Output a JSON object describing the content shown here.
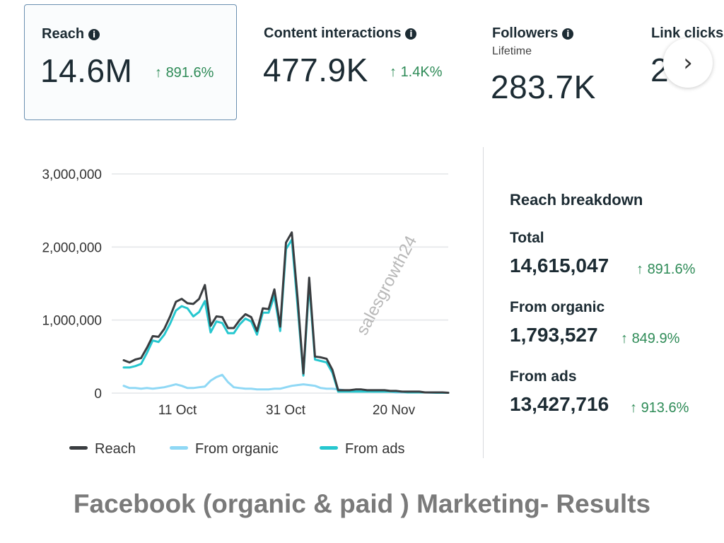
{
  "metrics": [
    {
      "title": "Reach",
      "value": "14.6M",
      "delta": "891.6%"
    },
    {
      "title": "Content interactions",
      "value": "477.9K",
      "delta": "1.4K%"
    },
    {
      "title": "Followers",
      "subtitle": "Lifetime",
      "value": "283.7K"
    },
    {
      "title": "Link clicks",
      "value": "2"
    }
  ],
  "info_icon": "info-icon",
  "next_icon": "chevron-right-icon",
  "breakdown": {
    "title": "Reach breakdown",
    "items": [
      {
        "label": "Total",
        "value": "14,615,047",
        "delta": "891.6%"
      },
      {
        "label": "From organic",
        "value": "1,793,527",
        "delta": "849.9%"
      },
      {
        "label": "From ads",
        "value": "13,427,716",
        "delta": "913.6%"
      }
    ]
  },
  "watermark": "salesgrowth24",
  "caption": "Facebook (organic & paid ) Marketing- Results",
  "colors": {
    "reach": "#3a3d40",
    "organic": "#8fd8f5",
    "ads": "#26c7cf",
    "positive": "#2e8b57"
  },
  "chart_data": {
    "type": "line",
    "x_ticks": [
      "11 Oct",
      "31 Oct",
      "20 Nov"
    ],
    "y_ticks": [
      "3,000,000",
      "2,000,000",
      "1,000,000",
      "0"
    ],
    "ylim": [
      0,
      3000000
    ],
    "grid": true,
    "legend_position": "bottom",
    "series": [
      {
        "name": "Reach",
        "color": "#3a3d40",
        "values": [
          450000,
          420000,
          460000,
          480000,
          620000,
          780000,
          770000,
          880000,
          1050000,
          1250000,
          1290000,
          1230000,
          1220000,
          1290000,
          1480000,
          920000,
          1050000,
          1040000,
          890000,
          890000,
          1000000,
          1080000,
          1040000,
          850000,
          1160000,
          1150000,
          1420000,
          910000,
          2060000,
          2200000,
          1300000,
          270000,
          1580000,
          500000,
          490000,
          470000,
          320000,
          40000,
          40000,
          40000,
          50000,
          50000,
          40000,
          40000,
          40000,
          40000,
          30000,
          30000,
          20000,
          20000,
          20000,
          20000,
          10000,
          10000,
          10000,
          10000,
          5000
        ]
      },
      {
        "name": "From organic",
        "color": "#8fd8f5",
        "values": [
          100000,
          70000,
          70000,
          60000,
          70000,
          60000,
          70000,
          80000,
          100000,
          120000,
          100000,
          70000,
          70000,
          80000,
          90000,
          170000,
          220000,
          250000,
          150000,
          80000,
          70000,
          60000,
          60000,
          50000,
          50000,
          50000,
          60000,
          60000,
          80000,
          100000,
          110000,
          120000,
          110000,
          100000,
          70000,
          60000,
          60000,
          50000,
          40000,
          30000,
          30000,
          30000,
          30000,
          20000,
          20000,
          20000,
          20000,
          10000,
          10000,
          10000,
          10000,
          10000,
          10000,
          5000,
          5000,
          5000,
          5000
        ]
      },
      {
        "name": "From ads",
        "color": "#26c7cf",
        "values": [
          350000,
          350000,
          370000,
          400000,
          550000,
          720000,
          700000,
          800000,
          950000,
          1130000,
          1190000,
          1160000,
          1050000,
          1110000,
          1260000,
          830000,
          980000,
          960000,
          820000,
          820000,
          940000,
          1020000,
          980000,
          800000,
          1100000,
          1100000,
          1330000,
          850000,
          1970000,
          2100000,
          1190000,
          240000,
          1490000,
          460000,
          440000,
          420000,
          280000,
          20000,
          20000,
          20000,
          20000,
          20000,
          20000,
          20000,
          20000,
          20000,
          20000,
          20000,
          20000,
          10000,
          10000,
          10000,
          10000,
          10000,
          5000,
          5000,
          5000
        ]
      }
    ]
  }
}
